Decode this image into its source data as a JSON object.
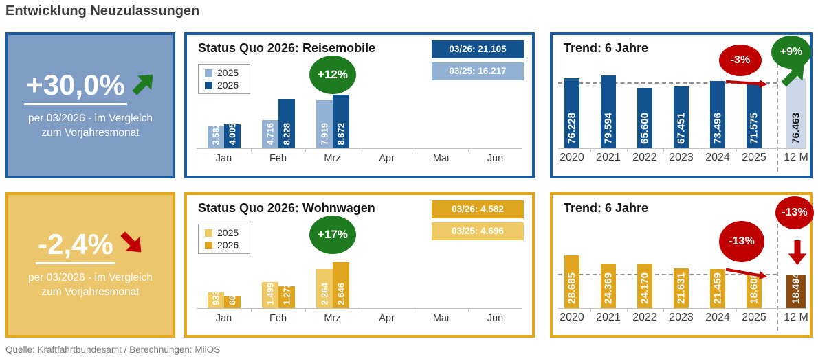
{
  "page": {
    "title": "Entwicklung Neuzulassungen",
    "source": "Quelle: Kraftfahrtbundesamt / Berechnungen: MiiOS"
  },
  "kpis": [
    {
      "id": "reisemobile",
      "value": "+30,0%",
      "caption": "per 03/2026 - im Vergleich zum Vorjahresmonat",
      "direction": "up",
      "theme_color": "#7E9CC4",
      "border_color": "#1A5A9E",
      "arrow_color": "#1E7B1F"
    },
    {
      "id": "wohnwagen",
      "value": "-2,4%",
      "caption": "per 03/2026 - im Vergleich zum Vorjahresmonat",
      "direction": "down",
      "theme_color": "#ECC66C",
      "border_color": "#E4A71A",
      "arrow_color": "#C00000"
    }
  ],
  "chart_data": [
    {
      "id": "status-quo-reisemobile",
      "type": "bar",
      "title": "Status Quo 2026: Reisemobile",
      "categories": [
        "Jan",
        "Feb",
        "Mrz",
        "Apr",
        "Mai",
        "Jun"
      ],
      "unit": "thousands",
      "ylim": [
        0,
        10
      ],
      "grid": false,
      "legend_position": "top-left",
      "series": [
        {
          "name": "2025",
          "values": [
            3.582,
            4.716,
            7.919,
            null,
            null,
            null
          ],
          "labels": [
            "3.582",
            "4.716",
            "7.919",
            null,
            null,
            null
          ]
        },
        {
          "name": "2026",
          "values": [
            4.005,
            8.228,
            8.872,
            null,
            null,
            null
          ],
          "labels": [
            "4.005",
            "8.228",
            "8.872",
            null,
            null,
            null
          ]
        }
      ],
      "badges": [
        {
          "label": "03/26: 21.105",
          "color": "#12528F"
        },
        {
          "label": "03/25: 16.217",
          "color": "#93B1D3"
        }
      ],
      "annotation": {
        "text": "+12%",
        "color": "#1E7B1F"
      },
      "colors": {
        "series": [
          "#93B1D3",
          "#12528F"
        ],
        "value_label": "#FFFFFF"
      }
    },
    {
      "id": "trend-reisemobile",
      "type": "bar",
      "title": "Trend: 6 Jahre",
      "categories": [
        "2020",
        "2021",
        "2022",
        "2023",
        "2024",
        "2025",
        "12 M"
      ],
      "values": [
        76.228,
        79.594,
        65.6,
        67.451,
        73.496,
        71.575,
        76.463
      ],
      "labels": [
        "76.228",
        "79.594",
        "65.600",
        "67.451",
        "73.496",
        "71.575",
        "76.463"
      ],
      "unit": "thousands",
      "ylim": [
        0,
        80
      ],
      "grid": false,
      "reference_line_at_value": 71.575,
      "annotations": [
        {
          "text": "-3%",
          "color": "#C00000"
        },
        {
          "text": "+9%",
          "color": "#1E7B1F"
        }
      ],
      "colors": {
        "bar": "#12528F",
        "bar_12m": "#C9D7E9",
        "value_label": "#FFFFFF",
        "value_label_12m": "#1A1A1A"
      }
    },
    {
      "id": "status-quo-wohnwagen",
      "type": "bar",
      "title": "Status Quo 2026: Wohnwagen",
      "categories": [
        "Jan",
        "Feb",
        "Mrz",
        "Apr",
        "Mai",
        "Jun"
      ],
      "unit": "thousands",
      "ylim": [
        0,
        3.5
      ],
      "grid": false,
      "legend_position": "top-left",
      "series": [
        {
          "name": "2025",
          "values": [
            0.933,
            1.499,
            2.264,
            null,
            null,
            null
          ],
          "labels": [
            "933",
            "1.499",
            "2.264",
            null,
            null,
            null
          ]
        },
        {
          "name": "2026",
          "values": [
            0.664,
            1.272,
            2.646,
            null,
            null,
            null
          ],
          "labels": [
            "664",
            "1.272",
            "2.646",
            null,
            null,
            null
          ]
        }
      ],
      "badges": [
        {
          "label": "03/26: 4.582",
          "color": "#E0A51F"
        },
        {
          "label": "03/25: 4.696",
          "color": "#EFC964"
        }
      ],
      "annotation": {
        "text": "+17%",
        "color": "#1E7B1F"
      },
      "colors": {
        "series": [
          "#EFC964",
          "#E0A51F"
        ],
        "value_label": "#FFFFFF"
      }
    },
    {
      "id": "trend-wohnwagen",
      "type": "bar",
      "title": "Trend: 6 Jahre",
      "categories": [
        "2020",
        "2021",
        "2022",
        "2023",
        "2024",
        "2025",
        "12 M"
      ],
      "values": [
        28.685,
        24.369,
        24.17,
        21.631,
        21.459,
        18.608,
        18.494
      ],
      "labels": [
        "28.685",
        "24.369",
        "24.170",
        "21.631",
        "21.459",
        "18.608",
        "18.494"
      ],
      "unit": "thousands",
      "ylim": [
        0,
        40
      ],
      "grid": false,
      "reference_line_at_value": 18.608,
      "annotations": [
        {
          "text": "-13%",
          "color": "#C00000"
        },
        {
          "text": "-13%",
          "color": "#C00000"
        }
      ],
      "colors": {
        "bar": "#E0A51F",
        "bar_12m": "#8A4B11",
        "value_label": "#FFFFFF",
        "value_label_12m": "#FFFFFF"
      }
    }
  ]
}
